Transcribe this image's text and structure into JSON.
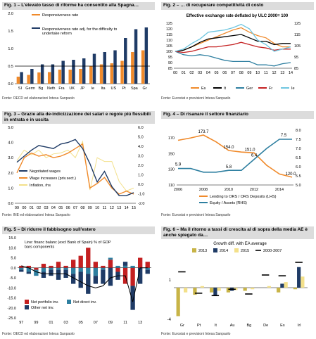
{
  "colors": {
    "navy": "#1f3b66",
    "orange": "#f08a2b",
    "teal": "#2e7fa0",
    "black": "#000000",
    "red": "#c42021",
    "ltblue": "#6fc6e0",
    "yellow": "#f3e08a",
    "gold": "#c8b447",
    "blue": "#2f6db5"
  },
  "panels": [
    {
      "title": "Fig. 1 – L'elevato tasso di riforme ha consentito alla Spagna…",
      "source": "Fonte: OECD ed elaborazioni Intesa Sanpaolo",
      "chart_data": {
        "type": "bar",
        "categories": [
          "SI",
          "Germ",
          "Bg",
          "Neth",
          "Fra",
          "UK",
          "JP",
          "Ie",
          "Ita",
          "US",
          "Pt",
          "Spa",
          "Gr"
        ],
        "series": [
          {
            "name": "Responsiveness rate",
            "values": [
              0.2,
              0.25,
              0.32,
              0.33,
              0.4,
              0.4,
              0.42,
              0.5,
              0.55,
              0.58,
              0.65,
              0.9,
              0.95
            ]
          },
          {
            "name": "Responsiveness rate adj. for the difficulty to undertake reform",
            "values": [
              0.33,
              0.42,
              0.55,
              0.55,
              0.65,
              0.68,
              0.72,
              0.85,
              0.9,
              0.95,
              1.3,
              1.55,
              1.6
            ]
          }
        ],
        "reference_line": 0.5,
        "ylim": [
          0,
          2.0
        ],
        "yticks": [
          0.0,
          0.5,
          1.0,
          1.5,
          2.0
        ],
        "legend": "top-left"
      }
    },
    {
      "title": "Fig. 2 – … di recuperare competitività di costo",
      "source": "Fonte: Eurostat e previsioni Intesa Sanpaolo",
      "chart_data": {
        "type": "line",
        "title": "Effective exchange rate deflated by ULC 2000= 100",
        "x": [
          "00",
          "01",
          "02",
          "03",
          "04",
          "05",
          "06",
          "07",
          "08",
          "09",
          "10",
          "11",
          "12",
          "13",
          "14"
        ],
        "series": [
          {
            "name": "Es",
            "values": [
              100,
              101,
              104,
              107,
              110,
              113,
              116,
              119,
              121,
              117,
              114,
              112,
              107,
              104,
              104
            ]
          },
          {
            "name": "It",
            "values": [
              100,
              101,
              104,
              108,
              111,
              112,
              113,
              114,
              115,
              112,
              109,
              109,
              106,
              107,
              107
            ]
          },
          {
            "name": "Ger",
            "values": [
              100,
              97,
              96,
              97,
              96,
              94,
              92,
              91,
              91,
              91,
              88,
              88,
              87,
              89,
              90
            ]
          },
          {
            "name": "Fr",
            "values": [
              100,
              99,
              100,
              102,
              104,
              104,
              105,
              106,
              108,
              106,
              104,
              103,
              101,
              102,
              102
            ]
          },
          {
            "name": "Ie",
            "values": [
              100,
              102,
              107,
              111,
              117,
              118,
              119,
              121,
              124,
              120,
              110,
              106,
              100,
              102,
              104
            ]
          }
        ],
        "ylim_left": [
          85,
          125
        ],
        "yticks_left": [
          85,
          90,
          95,
          100,
          105,
          110,
          115,
          120,
          125
        ],
        "ylim_right": [
          85,
          125
        ],
        "yticks_right": [
          85,
          95,
          105,
          115,
          125
        ],
        "legend": "bottom"
      }
    },
    {
      "title": "Fig. 3 – Grazie alla de-indicizzazione dei salari e regole più flessibili in entrata e in uscita",
      "source": "Fonte: INE ed elaborazioni Intesa Sanpaolo",
      "chart_data": {
        "type": "line",
        "x": [
          "99",
          "00",
          "01",
          "02",
          "03",
          "04",
          "05",
          "06",
          "07",
          "08",
          "09",
          "10",
          "11",
          "12",
          "13",
          "14",
          "15"
        ],
        "series": [
          {
            "name": "Negotiated wages",
            "axis": "left",
            "values": [
              2.7,
              3.1,
              3.5,
              3.8,
              3.7,
              3.6,
              3.9,
              4.0,
              4.2,
              3.6,
              2.6,
              1.4,
              2.1,
              1.1,
              0.5,
              0.5,
              0.7
            ]
          },
          {
            "name": "Wage increases (priv.sect.)",
            "axis": "left",
            "values": [
              2.0,
              3.0,
              3.3,
              3.1,
              3.2,
              3.0,
              3.1,
              3.3,
              3.6,
              3.9,
              1.0,
              1.3,
              1.7,
              1.0,
              0.6,
              0.8,
              0.6
            ]
          },
          {
            "name": "Inflation, rhs",
            "axis": "right",
            "values": [
              2.5,
              3.6,
              3.1,
              3.6,
              2.8,
              3.2,
              3.3,
              3.6,
              2.8,
              4.5,
              -0.6,
              2.8,
              2.4,
              2.4,
              0.3,
              -0.7,
              -0.4
            ]
          }
        ],
        "ylim_left": [
          0,
          5.0
        ],
        "yticks_left": [
          0.0,
          1.0,
          2.0,
          3.0,
          4.0,
          5.0
        ],
        "ylim_right": [
          -2.0,
          6.0
        ],
        "yticks_right": [
          -2.0,
          -1.0,
          0.0,
          1.0,
          2.0,
          3.0,
          4.0,
          5.0,
          6.0
        ],
        "legend": "bottom-left"
      }
    },
    {
      "title": "Fig. 4 – Di risanare il settore finanziario",
      "source": "Fonte: Eurostat e previsioni Intesa Sanpaolo",
      "chart_data": {
        "type": "line",
        "x": [
          2006,
          2007,
          2008,
          2009,
          2010,
          2011,
          2012,
          2013,
          2014,
          2015
        ],
        "series": [
          {
            "name": "Lending to ORS / ORS Deposits (LHS)",
            "axis": "left",
            "values": [
              167,
              170,
              173.7,
              165,
              154.0,
              152,
              151.0,
              135,
              124,
              120.0
            ]
          },
          {
            "name": "Equity / Assets (RHS)",
            "axis": "right",
            "values": [
              5.9,
              5.9,
              5.7,
              5.7,
              5.8,
              5.8,
              6.4,
              7.0,
              7.5,
              7.5
            ]
          }
        ],
        "data_labels": [
          "173.7",
          "154.0",
          "151.0",
          "120.0",
          "5.9",
          "5.8",
          "6.4",
          "7.5"
        ],
        "ylim_left": [
          110,
          180
        ],
        "yticks_left": [
          110,
          130,
          150,
          170
        ],
        "ylim_right": [
          5.0,
          8.0
        ],
        "yticks_right": [
          5.0,
          5.5,
          6.0,
          6.5,
          7.0,
          7.5,
          8.0
        ],
        "xticks": [
          2006,
          2008,
          2010,
          2012,
          2014
        ],
        "legend": "bottom"
      }
    },
    {
      "title": "Fig. 5 – Di ridurre il fabbisogno sull'estero",
      "source": "Fonte: OECD ed elaborazioni Intesa Sanpaolo",
      "chart_data": {
        "type": "bar",
        "title": "Line: financ balanc (excl Bank of Spain) % of GDP bars components",
        "categories": [
          "97",
          "98",
          "99",
          "00",
          "01",
          "02",
          "03",
          "04",
          "05",
          "06",
          "07",
          "08",
          "09",
          "10",
          "11",
          "12",
          "13",
          "14"
        ],
        "series": [
          {
            "name": "Net portfolio inv.",
            "values": [
              1,
              1,
              -1,
              2,
              1,
              3,
              1,
              4,
              6,
              10,
              3,
              1,
              4,
              -2,
              -8,
              -9,
              5,
              3
            ]
          },
          {
            "name": "Net direct inv.",
            "values": [
              -1,
              -2,
              -3,
              -2,
              -1,
              -1,
              -1,
              -3,
              -2,
              -3,
              -4,
              -1,
              1,
              1,
              1,
              1,
              0,
              -1
            ]
          },
          {
            "name": "Other net inv.",
            "values": [
              -1,
              -1,
              0,
              -3,
              -3,
              -5,
              -4,
              -5,
              -8,
              -10,
              -4,
              -7,
              -9,
              -4,
              2,
              -12,
              -8,
              -2
            ]
          },
          {
            "name": "Financial balance",
            "type": "line",
            "values": [
              1,
              0,
              -2,
              -3,
              -3,
              -3,
              -3,
              -5,
              -7,
              -9,
              -10,
              -9,
              -5,
              -4,
              -4,
              -17,
              0,
              0
            ]
          }
        ],
        "ylim": [
          -25.0,
          15.0
        ],
        "yticks": [
          -25.0,
          -20.0,
          -15.0,
          -10.0,
          -5.0,
          0.0,
          5.0,
          10.0,
          15.0
        ],
        "xtick_labels": [
          "97",
          "99",
          "01",
          "03",
          "05",
          "07",
          "09",
          "11",
          "13"
        ],
        "legend": "top-left"
      }
    },
    {
      "title": "Fig. 6 – Ma il ritorno a tassi di crescita al di sopra della media AE è anche spiegato da…",
      "source": "Fonte: Eurostat e previsioni Intesa Sanpaolo",
      "chart_data": {
        "type": "bar",
        "title": "Growth diff. with EA average",
        "categories": [
          "Gr",
          "Pt",
          "It",
          "Au",
          "Bg",
          "De",
          "Es",
          "Irl"
        ],
        "series": [
          {
            "name": "2013",
            "values": [
              -3.6,
              -0.9,
              -0.6,
              -0.6,
              -0.4,
              0.0,
              -0.6,
              -0.2
            ]
          },
          {
            "name": "2014",
            "values": [
              0.0,
              0.0,
              -1.0,
              -0.4,
              0.0,
              0.0,
              0.5,
              2.6
            ]
          },
          {
            "name": "2015",
            "values": [
              -0.6,
              0.2,
              -0.4,
              -0.3,
              -0.2,
              0.2,
              0.7,
              1.4
            ]
          },
          {
            "name": "2000-2007",
            "type": "marker",
            "values": [
              2.0,
              -0.7,
              -1.0,
              -0.2,
              -0.8,
              1.6,
              1.5,
              3.2
            ]
          }
        ],
        "ylim": [
          -4,
          4
        ],
        "ytick_labels": [
          "1",
          "-4"
        ],
        "legend": "top"
      }
    }
  ]
}
